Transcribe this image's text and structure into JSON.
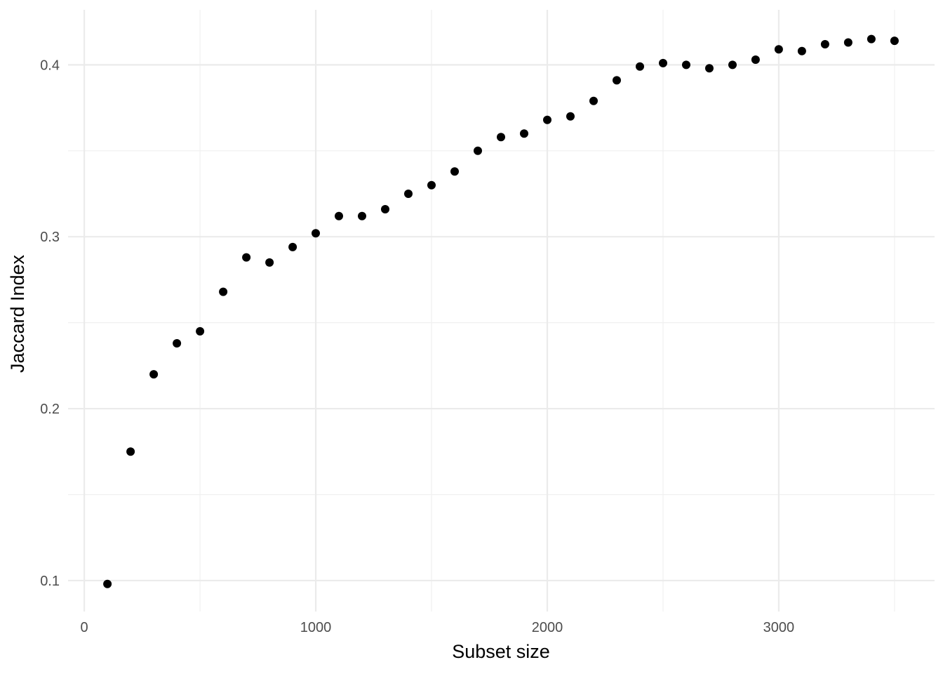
{
  "chart_data": {
    "type": "scatter",
    "title": "",
    "xlabel": "Subset size",
    "ylabel": "Jaccard Index",
    "x": [
      100,
      200,
      300,
      400,
      500,
      600,
      700,
      800,
      900,
      1000,
      1100,
      1200,
      1300,
      1400,
      1500,
      1600,
      1700,
      1800,
      1900,
      2000,
      2100,
      2200,
      2300,
      2400,
      2500,
      2600,
      2700,
      2800,
      2900,
      3000,
      3100,
      3200,
      3300,
      3400,
      3500
    ],
    "y": [
      0.098,
      0.175,
      0.22,
      0.238,
      0.245,
      0.268,
      0.288,
      0.285,
      0.294,
      0.302,
      0.312,
      0.312,
      0.316,
      0.325,
      0.33,
      0.338,
      0.35,
      0.358,
      0.36,
      0.368,
      0.37,
      0.379,
      0.391,
      0.399,
      0.401,
      0.4,
      0.398,
      0.4,
      0.403,
      0.409,
      0.408,
      0.412,
      0.413,
      0.415,
      0.414
    ],
    "xlim": [
      -70,
      3673
    ],
    "ylim": [
      0.082,
      0.432
    ],
    "x_major_ticks": [
      0,
      1000,
      2000,
      3000
    ],
    "x_tick_labels": [
      "0",
      "1000",
      "2000",
      "3000"
    ],
    "x_minor_ticks": [
      500,
      1500,
      2500,
      3500
    ],
    "y_major_ticks": [
      0.1,
      0.2,
      0.3,
      0.4
    ],
    "y_tick_labels": [
      "0.1",
      "0.2",
      "0.3",
      "0.4"
    ],
    "y_minor_ticks": [
      0.15,
      0.25,
      0.35
    ],
    "grid": true,
    "legend_position": "none",
    "point_color": "#000000",
    "point_radius": 6,
    "grid_major_color": "#EBEBEB",
    "grid_minor_color": "#F0F0F0",
    "tick_label_color": "#4D4D4D",
    "axis_title_color": "#000000",
    "background_color": "#FFFFFF"
  }
}
